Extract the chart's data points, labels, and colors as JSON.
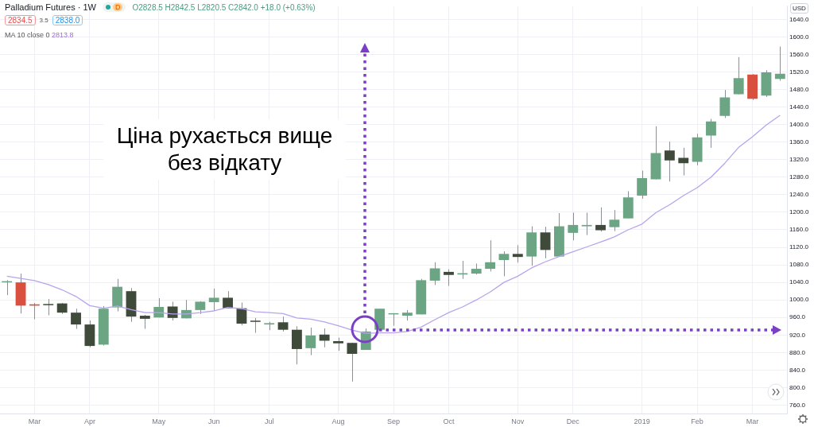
{
  "chart_data": {
    "type": "candlestick",
    "title": "Palladium Futures · 1W",
    "categories": [
      null,
      null,
      "Mar",
      null,
      null,
      null,
      "Apr",
      null,
      null,
      null,
      null,
      "May",
      null,
      null,
      null,
      "Jun",
      null,
      null,
      null,
      "Jul",
      null,
      null,
      null,
      null,
      "Aug",
      null,
      null,
      null,
      "Sep",
      null,
      null,
      null,
      "Oct",
      null,
      null,
      null,
      null,
      "Nov",
      null,
      null,
      null,
      "Dec",
      null,
      null,
      null,
      null,
      "2019",
      null,
      null,
      null,
      "Feb",
      null,
      null,
      null,
      "Mar",
      null,
      null
    ],
    "ohlc": [
      [
        1040,
        1045,
        1011,
        1042
      ],
      [
        1040,
        1060,
        969,
        987
      ],
      [
        990,
        993,
        956,
        987
      ],
      [
        990,
        1002,
        965,
        988
      ],
      [
        992,
        993,
        968,
        971
      ],
      [
        971,
        980,
        934,
        944
      ],
      [
        944,
        953,
        892,
        895
      ],
      [
        898,
        986,
        896,
        980
      ],
      [
        983,
        1048,
        974,
        1030
      ],
      [
        1020,
        1027,
        950,
        962
      ],
      [
        964,
        966,
        934,
        957
      ],
      [
        960,
        1004,
        960,
        984
      ],
      [
        985,
        996,
        953,
        959
      ],
      [
        958,
        1000,
        958,
        977
      ],
      [
        977,
        997,
        968,
        996
      ],
      [
        995,
        1026,
        975,
        1005
      ],
      [
        1005,
        1020,
        981,
        981
      ],
      [
        981,
        994,
        942,
        946
      ],
      [
        951,
        959,
        925,
        950
      ],
      [
        944,
        950,
        931,
        947
      ],
      [
        949,
        962,
        928,
        932
      ],
      [
        932,
        940,
        853,
        888
      ],
      [
        890,
        937,
        874,
        919
      ],
      [
        921,
        935,
        892,
        907
      ],
      [
        906,
        914,
        884,
        901
      ],
      [
        902,
        902,
        814,
        877
      ],
      [
        886,
        935,
        886,
        928
      ],
      [
        932,
        980,
        932,
        980
      ],
      [
        967,
        969,
        941,
        969
      ],
      [
        964,
        977,
        953,
        971
      ],
      [
        967,
        1048,
        967,
        1045
      ],
      [
        1044,
        1086,
        1034,
        1072
      ],
      [
        1064,
        1070,
        1032,
        1057
      ],
      [
        1058,
        1089,
        1048,
        1061
      ],
      [
        1060,
        1083,
        1058,
        1071
      ],
      [
        1071,
        1136,
        1065,
        1086
      ],
      [
        1091,
        1111,
        1054,
        1105
      ],
      [
        1105,
        1125,
        1085,
        1098
      ],
      [
        1099,
        1168,
        1078,
        1154
      ],
      [
        1154,
        1167,
        1095,
        1114
      ],
      [
        1099,
        1198,
        1099,
        1168
      ],
      [
        1153,
        1199,
        1136,
        1171
      ],
      [
        1168,
        1199,
        1148,
        1171
      ],
      [
        1171,
        1211,
        1156,
        1159
      ],
      [
        1166,
        1205,
        1157,
        1183
      ],
      [
        1186,
        1248,
        1186,
        1234
      ],
      [
        1238,
        1295,
        1231,
        1278
      ],
      [
        1275,
        1396,
        1275,
        1335
      ],
      [
        1341,
        1361,
        1270,
        1318
      ],
      [
        1324,
        1347,
        1284,
        1312
      ],
      [
        1315,
        1379,
        1307,
        1371
      ],
      [
        1375,
        1413,
        1347,
        1407
      ],
      [
        1420,
        1479,
        1415,
        1462
      ],
      [
        1469,
        1554,
        1469,
        1506
      ],
      [
        1514,
        1515,
        1456,
        1459
      ],
      [
        1466,
        1524,
        1463,
        1519
      ],
      [
        1504,
        1578,
        1500,
        1516
      ]
    ],
    "colors": [
      "#6ba583",
      "#d9503f",
      "#d9503f",
      "#3f4a3a",
      "#3f4a3a",
      "#3f4a3a",
      "#3f4a3a",
      "#6ba583",
      "#6ba583",
      "#3f4a3a",
      "#3f4a3a",
      "#6ba583",
      "#3f4a3a",
      "#6ba583",
      "#6ba583",
      "#6ba583",
      "#3f4a3a",
      "#3f4a3a",
      "#3f4a3a",
      "#6ba583",
      "#3f4a3a",
      "#3f4a3a",
      "#6ba583",
      "#3f4a3a",
      "#3f4a3a",
      "#3f4a3a",
      "#6ba583",
      "#6ba583",
      "#6ba583",
      "#6ba583",
      "#6ba583",
      "#6ba583",
      "#3f4a3a",
      "#6ba583",
      "#6ba583",
      "#6ba583",
      "#6ba583",
      "#3f4a3a",
      "#6ba583",
      "#3f4a3a",
      "#6ba583",
      "#6ba583",
      "#6ba583",
      "#3f4a3a",
      "#6ba583",
      "#6ba583",
      "#6ba583",
      "#6ba583",
      "#3f4a3a",
      "#3f4a3a",
      "#6ba583",
      "#6ba583",
      "#6ba583",
      "#6ba583",
      "#d9503f",
      "#6ba583",
      "#6ba583"
    ],
    "series": [
      {
        "name": "MA 10 close 0",
        "type": "line",
        "color": "#b7a4ec",
        "values": [
          1054,
          1049,
          1044,
          1035,
          1023,
          1008,
          987,
          981,
          986,
          978,
          971,
          971,
          968,
          968,
          971,
          975,
          983,
          980,
          973,
          971,
          969,
          959,
          956,
          950,
          941,
          931,
          924,
          925,
          925,
          928,
          938,
          955,
          971,
          984,
          1000,
          1018,
          1040,
          1054,
          1073,
          1087,
          1099,
          1110,
          1121,
          1132,
          1144,
          1160,
          1173,
          1199,
          1217,
          1238,
          1256,
          1280,
          1312,
          1348,
          1372,
          1399,
          1421
        ]
      }
    ],
    "ylim": [
      741,
      1670
    ],
    "yticks": [
      {
        "value": 760,
        "label": "760.0"
      },
      {
        "value": 800,
        "label": "800.0"
      },
      {
        "value": 840,
        "label": "840.0"
      },
      {
        "value": 880,
        "label": "880.0"
      },
      {
        "value": 920,
        "label": "920.0"
      },
      {
        "value": 960,
        "label": "960.0"
      },
      {
        "value": 1000,
        "label": "1000.0"
      },
      {
        "value": 1040,
        "label": "1040.0"
      },
      {
        "value": 1080,
        "label": "1080.0"
      },
      {
        "value": 1120,
        "label": "1120.0"
      },
      {
        "value": 1160,
        "label": "1160.0"
      },
      {
        "value": 1200,
        "label": "1200.0"
      },
      {
        "value": 1240,
        "label": "1240.0"
      },
      {
        "value": 1280,
        "label": "1280.0"
      },
      {
        "value": 1320,
        "label": "1320.0"
      },
      {
        "value": 1360,
        "label": "1360.0"
      },
      {
        "value": 1400,
        "label": "1400.0"
      },
      {
        "value": 1440,
        "label": "1440.0"
      },
      {
        "value": 1480,
        "label": "1480.0"
      },
      {
        "value": 1520,
        "label": "1520.0"
      },
      {
        "value": 1560,
        "label": "1560.0"
      },
      {
        "value": 1600,
        "label": "1600.0"
      },
      {
        "value": 1640,
        "label": "1640.0"
      }
    ],
    "grid": true,
    "legend": "top left",
    "annotations": [
      "D",
      "O2828.5 H2842.5 L2820.5 C2842.0 +18.0 (+0.63%)",
      "2834.5",
      "3.5",
      "2838.0",
      "2813.8",
      "USD",
      "Ціна рухається вище без відкату"
    ]
  }
}
